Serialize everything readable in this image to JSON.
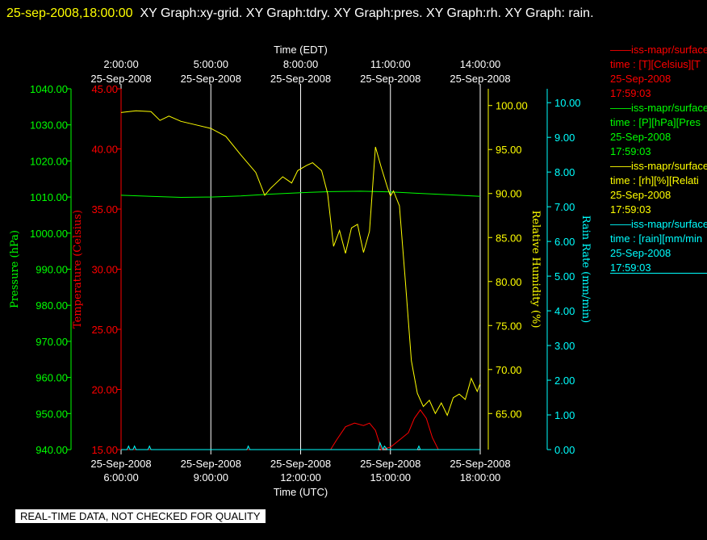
{
  "header": {
    "timestamp": "25-sep-2008,18:00:00",
    "graph_list": "XY Graph:xy-grid.  XY Graph:tdry.  XY Graph:pres.  XY Graph:rh.  XY Graph: rain."
  },
  "colors": {
    "background": "#000000",
    "temperature": "#ff0000",
    "pressure": "#00ff00",
    "rh": "#ffff00",
    "rain": "#00ffff",
    "grid": "#ffffff"
  },
  "legend": [
    {
      "series": "iss-mapr/surface",
      "line1": "time : [T][Celsius][T",
      "date": "25-Sep-2008",
      "time": "17:59:03",
      "color": "#ff0000"
    },
    {
      "series": "iss-mapr/surface",
      "line1": "time : [P][hPa][Pres",
      "date": "25-Sep-2008",
      "time": "17:59:03",
      "color": "#00ff00"
    },
    {
      "series": "iss-mapr/surface",
      "line1": "time : [rh][%][Relati",
      "date": "25-Sep-2008",
      "time": "17:59:03",
      "color": "#ffff00"
    },
    {
      "series": "iss-mapr/surface",
      "line1": "time : [rain][mm/min",
      "date": "25-Sep-2008",
      "time": "17:59:03",
      "color": "#00ffff"
    }
  ],
  "footer": {
    "quality_notice": "REAL-TIME DATA, NOT CHECKED FOR QUALITY"
  },
  "chart_data": {
    "type": "line",
    "x_unit": "hours UTC on 25-Sep-2008",
    "xlim": [
      6,
      18
    ],
    "top_axis": {
      "label": "Time (EDT)",
      "ticks": [
        {
          "x": 6,
          "time": "2:00:00",
          "date": "25-Sep-2008"
        },
        {
          "x": 9,
          "time": "5:00:00",
          "date": "25-Sep-2008"
        },
        {
          "x": 12,
          "time": "8:00:00",
          "date": "25-Sep-2008"
        },
        {
          "x": 15,
          "time": "11:00:00",
          "date": "25-Sep-2008"
        },
        {
          "x": 18,
          "time": "14:00:00",
          "date": "25-Sep-2008"
        }
      ]
    },
    "bottom_axis": {
      "label": "Time (UTC)",
      "ticks": [
        {
          "x": 6,
          "date": "25-Sep-2008",
          "time": "6:00:00"
        },
        {
          "x": 9,
          "date": "25-Sep-2008",
          "time": "9:00:00"
        },
        {
          "x": 12,
          "date": "25-Sep-2008",
          "time": "12:00:00"
        },
        {
          "x": 15,
          "date": "25-Sep-2008",
          "time": "15:00:00"
        },
        {
          "x": 18,
          "date": "25-Sep-2008",
          "time": "18:00:00"
        }
      ]
    },
    "axes": {
      "pressure": {
        "label": "Pressure (hPa)",
        "ylim": [
          940,
          1040
        ],
        "ticks": [
          "940.00",
          "950.00",
          "960.00",
          "970.00",
          "980.00",
          "990.00",
          "1000.00",
          "1010.00",
          "1020.00",
          "1030.00",
          "1040.00"
        ]
      },
      "temperature": {
        "label": "Temperature (Celsius)",
        "ylim": [
          15,
          45
        ],
        "ticks": [
          "15.00",
          "20.00",
          "25.00",
          "30.00",
          "35.00",
          "40.00",
          "45.00"
        ]
      },
      "rh": {
        "label": "Relative Humidity (%)",
        "ylim": [
          60.9,
          101.9
        ],
        "ticks": [
          "65.00",
          "70.00",
          "75.00",
          "80.00",
          "85.00",
          "90.00",
          "95.00",
          "100.00"
        ]
      },
      "rain": {
        "label": "Rain Rate (mm/min)",
        "ylim": [
          0,
          10.4
        ],
        "ticks": [
          "0.00",
          "1.00",
          "2.00",
          "3.00",
          "4.00",
          "5.00",
          "6.00",
          "7.00",
          "8.00",
          "9.00",
          "10.00"
        ]
      }
    },
    "grid": "vertical lines at major ticks",
    "series": [
      {
        "axis": "pressure",
        "x": [
          6,
          7,
          8,
          9,
          10,
          11,
          12,
          13,
          14,
          15,
          16,
          17,
          18
        ],
        "values": [
          1010.5,
          1010.2,
          1009.9,
          1010.0,
          1010.3,
          1010.8,
          1011.2,
          1011.5,
          1011.6,
          1011.4,
          1011.0,
          1010.6,
          1010.2
        ]
      },
      {
        "axis": "rh",
        "x": [
          6,
          6.5,
          7,
          7.3,
          7.6,
          8,
          8.5,
          9,
          9.5,
          10,
          10.5,
          10.8,
          11,
          11.4,
          11.7,
          11.9,
          12.2,
          12.4,
          12.7,
          12.9,
          13.1,
          13.3,
          13.5,
          13.7,
          13.9,
          14.1,
          14.3,
          14.5,
          14.7,
          14.9,
          15,
          15.1,
          15.3,
          15.5,
          15.7,
          15.9,
          16.1,
          16.3,
          16.5,
          16.7,
          16.9,
          17.1,
          17.3,
          17.5,
          17.7,
          17.9,
          18
        ],
        "values": [
          99.2,
          99.4,
          99.3,
          98.3,
          98.8,
          98.2,
          97.8,
          97.4,
          96.5,
          94.4,
          92.4,
          89.8,
          90.6,
          91.9,
          91.2,
          92.6,
          93.2,
          93.5,
          92.6,
          90.0,
          84.0,
          85.8,
          83.2,
          86.1,
          86.5,
          83.3,
          85.7,
          95.3,
          92.9,
          90.7,
          89.7,
          90.3,
          88.6,
          80.0,
          71.0,
          67.3,
          65.8,
          66.5,
          65.0,
          66.2,
          64.8,
          66.8,
          67.2,
          66.6,
          69.0,
          67.5,
          68.4
        ]
      },
      {
        "axis": "temperature",
        "x": [
          6,
          13.0,
          13.2,
          13.5,
          13.8,
          14.1,
          14.3,
          14.5,
          14.7,
          15,
          15.3,
          15.6,
          15.8,
          16.0,
          16.2,
          16.4,
          16.6,
          18
        ],
        "values": [
          15.0,
          15.0,
          15.8,
          16.9,
          17.2,
          17.0,
          17.2,
          16.6,
          15.0,
          15.2,
          15.8,
          16.4,
          17.6,
          18.3,
          17.6,
          16.0,
          15.0,
          15.0
        ]
      },
      {
        "axis": "rain",
        "x": [
          6,
          6.2,
          6.25,
          6.3,
          6.4,
          6.45,
          6.5,
          6.9,
          6.95,
          7.0,
          7.3,
          8.0,
          9.0,
          10.2,
          10.25,
          10.3,
          11.0,
          12.0,
          14.0,
          14.6,
          14.65,
          14.7,
          14.75,
          14.8,
          14.9,
          15.0,
          15.9,
          15.95,
          16.0,
          17.0,
          18.0
        ],
        "values": [
          0,
          0,
          0.1,
          0,
          0,
          0.1,
          0,
          0,
          0.1,
          0,
          0,
          0,
          0,
          0,
          0.1,
          0,
          0,
          0,
          0,
          0,
          0.2,
          0.1,
          0,
          0.1,
          0,
          0,
          0,
          0.1,
          0,
          0,
          0
        ]
      }
    ]
  }
}
